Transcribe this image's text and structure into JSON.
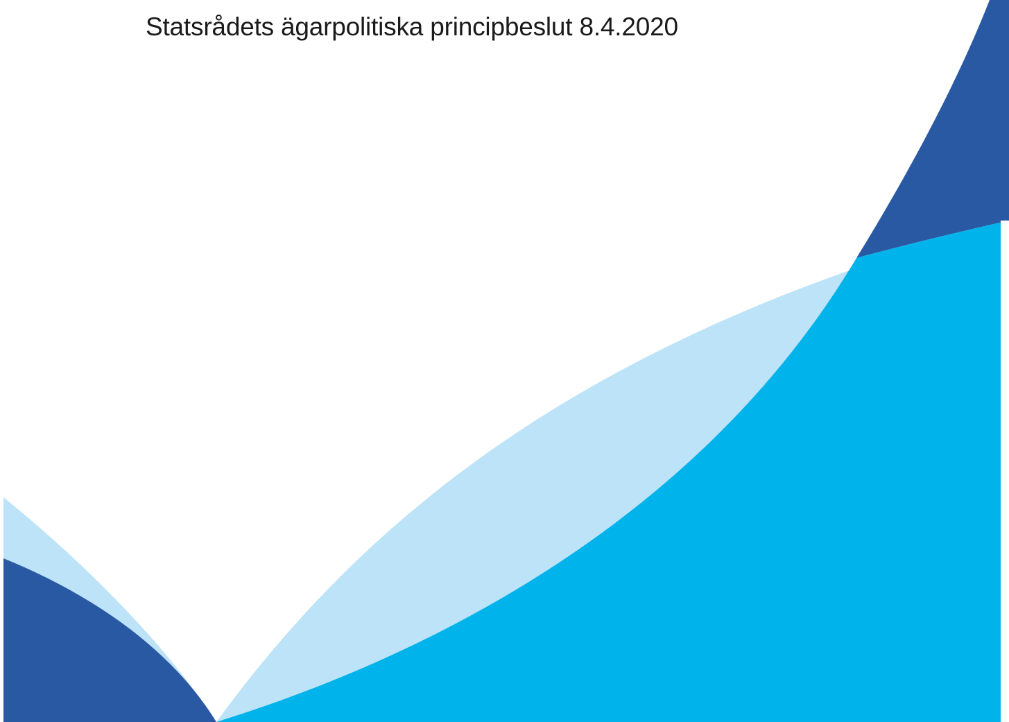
{
  "document": {
    "title": "Statsrådets ägarpolitiska principbeslut 8.4.2020"
  },
  "decor": {
    "shapes": [
      {
        "name": "wave-light-blue-shape",
        "color": "#bde3f8"
      },
      {
        "name": "wave-cyan-shape",
        "color": "#00b4eb"
      },
      {
        "name": "wave-dark-blue-top-right-shape",
        "color": "#2a59a4"
      },
      {
        "name": "wave-dark-blue-bottom-left-shape",
        "color": "#2a59a4"
      }
    ]
  }
}
